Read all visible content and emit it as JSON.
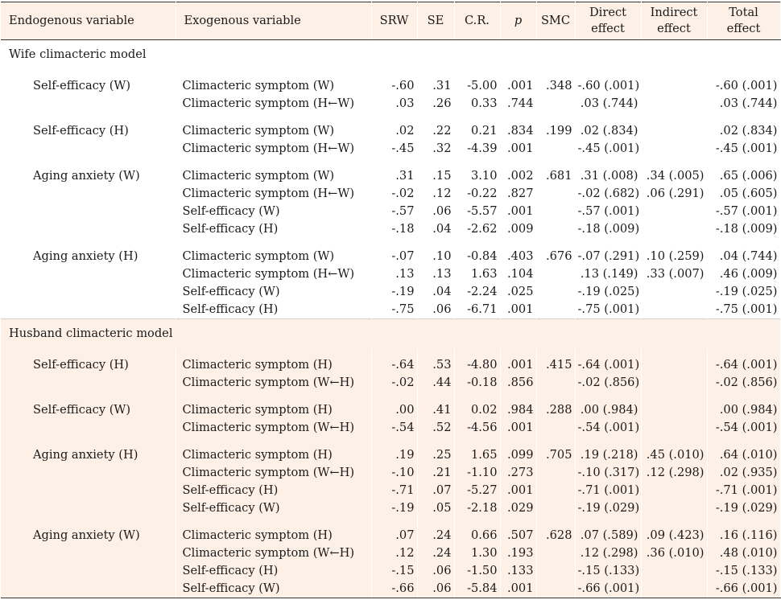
{
  "headers": [
    "Endogenous variable",
    "Exogenous variable",
    "SRW",
    "SE",
    "C.R.",
    "p",
    "SMC",
    "Direct effect",
    "Indirect effect",
    "Total effect"
  ],
  "sections": [
    {
      "title": "Wife climacteric model",
      "groups": [
        {
          "endogenous": "Self-efficacy (W)",
          "rows": [
            [
              "Climacteric symptom (W)",
              "-.60",
              ".31",
              "-5.00",
              ".001",
              ".348",
              "-.60 (.001)",
              "",
              "-.60 (.001)"
            ],
            [
              "Climacteric symptom (H←W)",
              ".03",
              ".26",
              "0.33",
              ".744",
              "",
              ".03 (.744)",
              "",
              ".03 (.744)"
            ]
          ]
        },
        {
          "endogenous": "Self-efficacy (H)",
          "rows": [
            [
              "Climacteric symptom (W)",
              ".02",
              ".22",
              "0.21",
              ".834",
              ".199",
              ".02 (.834)",
              "",
              ".02 (.834)"
            ],
            [
              "Climacteric symptom (H←W)",
              "-.45",
              ".32",
              "-4.39",
              ".001",
              "",
              "-.45 (.001)",
              "",
              "-.45 (.001)"
            ]
          ]
        },
        {
          "endogenous": "Aging anxiety (W)",
          "rows": [
            [
              "Climacteric symptom (W)",
              ".31",
              ".15",
              "3.10",
              ".002",
              ".681",
              ".31 (.008)",
              ".34 (.005)",
              ".65 (.006)"
            ],
            [
              "Climacteric symptom (H←W)",
              "-.02",
              ".12",
              "-0.22",
              ".827",
              "",
              "-.02 (.682)",
              ".06 (.291)",
              ".05 (.605)"
            ],
            [
              "Self-efficacy (W)",
              "-.57",
              ".06",
              "-5.57",
              ".001",
              "",
              "-.57 (.001)",
              "",
              "-.57 (.001)"
            ],
            [
              "Self-efficacy (H)",
              "-.18",
              ".04",
              "-2.62",
              ".009",
              "",
              "-.18 (.009)",
              "",
              "-.18 (.009)"
            ]
          ]
        },
        {
          "endogenous": "Aging anxiety (H)",
          "rows": [
            [
              "Climacteric symptom (W)",
              "-.07",
              ".10",
              "-0.84",
              ".403",
              ".676",
              "-.07 (.291)",
              ".10 (.259)",
              ".04 (.744)"
            ],
            [
              "Climacteric symptom (H←W)",
              ".13",
              ".13",
              "1.63",
              ".104",
              "",
              ".13 (.149)",
              ".33 (.007)",
              ".46 (.009)"
            ],
            [
              "Self-efficacy (W)",
              "-.19",
              ".04",
              "-2.24",
              ".025",
              "",
              "-.19 (.025)",
              "",
              "-.19 (.025)"
            ],
            [
              "Self-efficacy (H)",
              "-.75",
              ".06",
              "-6.71",
              ".001",
              "",
              "-.75 (.001)",
              "",
              "-.75 (.001)"
            ]
          ]
        }
      ]
    },
    {
      "title": "Husband climacteric model",
      "groups": [
        {
          "endogenous": "Self-efficacy (H)",
          "rows": [
            [
              "Climacteric symptom (H)",
              "-.64",
              ".53",
              "-4.80",
              ".001",
              ".415",
              "-.64 (.001)",
              "",
              "-.64 (.001)"
            ],
            [
              "Climacteric symptom (W←H)",
              "-.02",
              ".44",
              "-0.18",
              ".856",
              "",
              "-.02 (.856)",
              "",
              "-.02 (.856)"
            ]
          ]
        },
        {
          "endogenous": "Self-efficacy (W)",
          "rows": [
            [
              "Climacteric symptom (H)",
              ".00",
              ".41",
              "0.02",
              ".984",
              ".288",
              ".00 (.984)",
              "",
              ".00 (.984)"
            ],
            [
              "Climacteric symptom (W←H)",
              "-.54",
              ".52",
              "-4.56",
              ".001",
              "",
              "-.54 (.001)",
              "",
              "-.54 (.001)"
            ]
          ]
        },
        {
          "endogenous": "Aging anxiety (H)",
          "rows": [
            [
              "Climacteric symptom (H)",
              ".19",
              ".25",
              "1.65",
              ".099",
              ".705",
              ".19 (.218)",
              ".45 (.010)",
              ".64 (.010)"
            ],
            [
              "Climacteric symptom (W←H)",
              "-.10",
              ".21",
              "-1.10",
              ".273",
              "",
              "-.10 (.317)",
              ".12 (.298)",
              ".02 (.935)"
            ],
            [
              "Self-efficacy (H)",
              "-.71",
              ".07",
              "-5.27",
              ".001",
              "",
              "-.71 (.001)",
              "",
              "-.71 (.001)"
            ],
            [
              "Self-efficacy (W)",
              "-.19",
              ".05",
              "-2.18",
              ".029",
              "",
              "-.19 (.029)",
              "",
              "-.19 (.029)"
            ]
          ]
        },
        {
          "endogenous": "Aging anxiety (W)",
          "rows": [
            [
              "Climacteric symptom (H)",
              ".07",
              ".24",
              "0.66",
              ".507",
              ".628",
              ".07 (.589)",
              ".09 (.423)",
              ".16 (.116)"
            ],
            [
              "Climacteric symptom (W←H)",
              ".12",
              ".24",
              "1.30",
              ".193",
              "",
              ".12 (.298)",
              ".36 (.010)",
              ".48 (.010)"
            ],
            [
              "Self-efficacy (H)",
              "-.15",
              ".06",
              "-1.50",
              ".133",
              "",
              "-.15 (.133)",
              "",
              "-.15 (.133)"
            ],
            [
              "Self-efficacy (W)",
              "-.66",
              ".06",
              "-5.84",
              ".001",
              "",
              "-.66 (.001)",
              "",
              "-.66 (.001)"
            ]
          ]
        }
      ]
    }
  ]
}
